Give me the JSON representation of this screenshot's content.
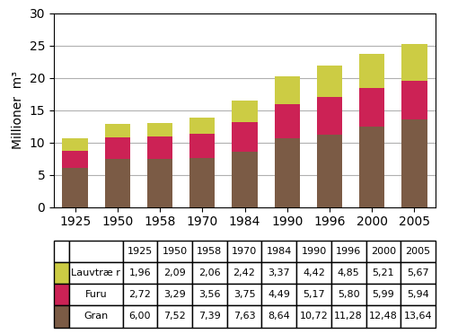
{
  "chart_data": {
    "type": "bar",
    "stacked": true,
    "ylabel": "Millioner  m³",
    "categories": [
      "1925",
      "1950",
      "1958",
      "1970",
      "1984",
      "1990",
      "1996",
      "2000",
      "2005"
    ],
    "series": [
      {
        "name": "Gran",
        "color": "#7B5B45",
        "values": [
          6.0,
          7.52,
          7.39,
          7.63,
          8.64,
          10.72,
          11.28,
          12.48,
          13.64
        ],
        "value_labels": [
          "6,00",
          "7,52",
          "7,39",
          "7,63",
          "8,64",
          "10,72",
          "11,28",
          "12,48",
          "13,64"
        ]
      },
      {
        "name": "Furu",
        "color": "#CC2255",
        "values": [
          2.72,
          3.29,
          3.56,
          3.75,
          4.49,
          5.17,
          5.8,
          5.99,
          5.94
        ],
        "value_labels": [
          "2,72",
          "3,29",
          "3,56",
          "3,75",
          "4,49",
          "5,17",
          "5,80",
          "5,99",
          "5,94"
        ]
      },
      {
        "name": "Lauvtræ r",
        "color": "#CCCC44",
        "values": [
          1.96,
          2.09,
          2.06,
          2.42,
          3.37,
          4.42,
          4.85,
          5.21,
          5.67
        ],
        "value_labels": [
          "1,96",
          "2,09",
          "2,06",
          "2,42",
          "3,37",
          "4,42",
          "4,85",
          "5,21",
          "5,67"
        ]
      }
    ],
    "ylim": [
      0,
      30
    ],
    "yticks": [
      0,
      5,
      10,
      15,
      20,
      25,
      30
    ],
    "grid": true
  }
}
